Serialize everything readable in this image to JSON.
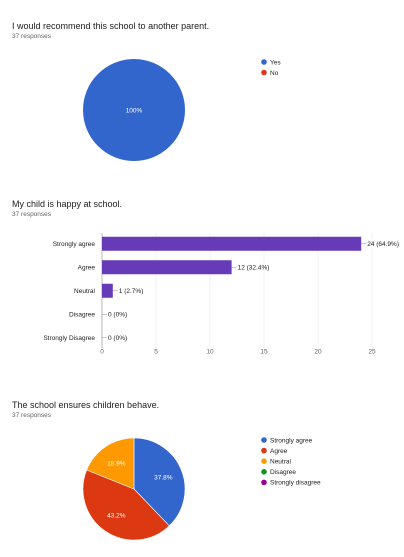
{
  "charts": [
    {
      "title": "I would recommend this school to another parent.",
      "responses": "37 responses",
      "chart_type": "pie",
      "slice_label": "100%",
      "legend": [
        {
          "label": "Yes",
          "color": "#3366cc"
        },
        {
          "label": "No",
          "color": "#dc3912"
        }
      ]
    },
    {
      "title": "My child is happy at school.",
      "responses": "37 responses",
      "chart_type": "bar",
      "bar_color": "#673ab7",
      "x_ticks": [
        "0",
        "5",
        "10",
        "15",
        "20",
        "25"
      ]
    },
    {
      "title": "The school ensures children behave.",
      "responses": "37 responses",
      "chart_type": "pie",
      "legend": [
        {
          "label": "Strongly agree",
          "color": "#3366cc"
        },
        {
          "label": "Agree",
          "color": "#dc3912"
        },
        {
          "label": "Neutral",
          "color": "#ff9900"
        },
        {
          "label": "Disagree",
          "color": "#109618"
        },
        {
          "label": "Strongly disagree",
          "color": "#990099"
        }
      ]
    }
  ],
  "chart_data": [
    {
      "type": "pie",
      "title": "I would recommend this school to another parent.",
      "categories": [
        "Yes",
        "No"
      ],
      "values": [
        37,
        0
      ],
      "labels": [
        "100%",
        ""
      ],
      "colors": [
        "#3366cc",
        "#dc3912"
      ]
    },
    {
      "type": "bar",
      "orientation": "horizontal",
      "title": "My child is happy at school.",
      "categories": [
        "Strongly agree",
        "Agree",
        "Neutral",
        "Disagree",
        "Strongly Disagree"
      ],
      "values": [
        24,
        12,
        1,
        0,
        0
      ],
      "data_labels": [
        "24 (64.9%)",
        "12 (32.4%)",
        "1 (2.7%)",
        "0 (0%)",
        "0 (0%)"
      ],
      "xlim": [
        0,
        25
      ],
      "color": "#673ab7"
    },
    {
      "type": "pie",
      "title": "The school ensures children behave.",
      "categories": [
        "Strongly agree",
        "Agree",
        "Neutral",
        "Disagree",
        "Strongly disagree"
      ],
      "values": [
        14,
        16,
        7,
        0,
        0
      ],
      "labels": [
        "37.8%",
        "43.2%",
        "18.9%",
        "",
        ""
      ],
      "colors": [
        "#3366cc",
        "#dc3912",
        "#ff9900",
        "#109618",
        "#990099"
      ]
    }
  ]
}
